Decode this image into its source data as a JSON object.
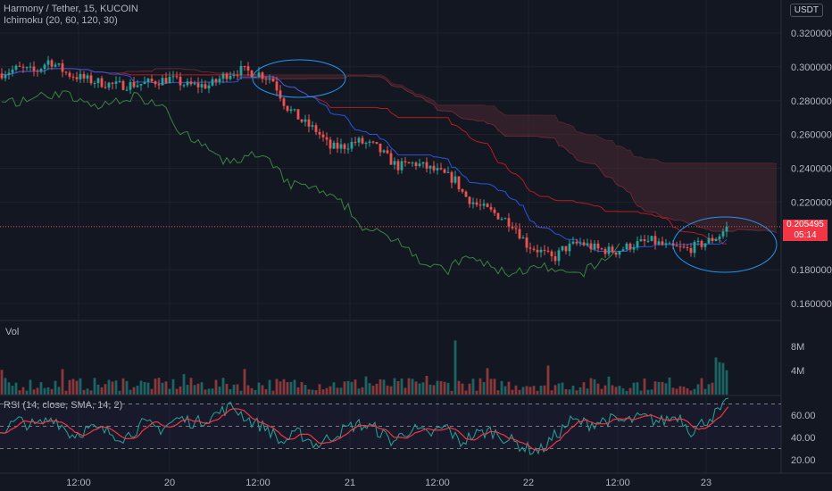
{
  "header": {
    "symbol_line": "Harmony / Tether, 15, KUCOIN",
    "indicator_line": "Ichimoku (20, 60, 120, 30)",
    "currency_button": "USDT"
  },
  "panes": {
    "volume_label": "Vol",
    "rsi_label": "RSI (14, close, SMA, 14, 2)"
  },
  "last_price": {
    "value": "0.205495",
    "countdown": "05:14"
  },
  "colors": {
    "background": "#131722",
    "up": "#26a69a",
    "down": "#ef5350",
    "conversion": "#2962ff",
    "base": "#b71c1c",
    "lagging": "#43a047",
    "cloud": "#6b2f36",
    "rsi": "#7e57c2",
    "rsi_ma": "#f23645",
    "annotation": "#2196f3"
  },
  "chart_data": [
    {
      "type": "candlestick",
      "title": "Harmony / Tether, 15, KUCOIN",
      "y_ticks": [
        "0.320000",
        "0.300000",
        "0.280000",
        "0.260000",
        "0.240000",
        "0.220000",
        "0.180000",
        "0.160000"
      ],
      "ylim": [
        0.152,
        0.326
      ],
      "x_ticks": [
        "12:00",
        "20",
        "12:00",
        "21",
        "12:00",
        "22",
        "12:00",
        "23"
      ],
      "price_anchors": [
        [
          0,
          0.296
        ],
        [
          20,
          0.299
        ],
        [
          40,
          0.297
        ],
        [
          55,
          0.304
        ],
        [
          75,
          0.296
        ],
        [
          100,
          0.292
        ],
        [
          130,
          0.289
        ],
        [
          160,
          0.29
        ],
        [
          190,
          0.293
        ],
        [
          210,
          0.289
        ],
        [
          235,
          0.289
        ],
        [
          255,
          0.296
        ],
        [
          270,
          0.298
        ],
        [
          290,
          0.296
        ],
        [
          305,
          0.293
        ],
        [
          320,
          0.277
        ],
        [
          340,
          0.267
        ],
        [
          355,
          0.262
        ],
        [
          370,
          0.252
        ],
        [
          385,
          0.253
        ],
        [
          400,
          0.256
        ],
        [
          420,
          0.253
        ],
        [
          445,
          0.241
        ],
        [
          465,
          0.243
        ],
        [
          490,
          0.238
        ],
        [
          510,
          0.233
        ],
        [
          520,
          0.224
        ],
        [
          535,
          0.218
        ],
        [
          555,
          0.213
        ],
        [
          575,
          0.207
        ],
        [
          590,
          0.195
        ],
        [
          605,
          0.191
        ],
        [
          620,
          0.186
        ],
        [
          630,
          0.192
        ],
        [
          650,
          0.196
        ],
        [
          670,
          0.192
        ],
        [
          690,
          0.191
        ],
        [
          710,
          0.195
        ],
        [
          730,
          0.197
        ],
        [
          750,
          0.193
        ],
        [
          770,
          0.192
        ],
        [
          790,
          0.196
        ],
        [
          805,
          0.2
        ],
        [
          816,
          0.2055
        ]
      ],
      "last_price": 0.205495,
      "annotations": [
        "ellipse near 0.294",
        "ellipse near 0.196"
      ]
    },
    {
      "type": "bar",
      "title": "Vol",
      "y_ticks": [
        "8M",
        "4M"
      ]
    },
    {
      "type": "line",
      "title": "RSI (14, close, SMA, 14, 2)",
      "y_ticks": [
        "60.00",
        "40.00",
        "20.00"
      ],
      "ylim": [
        0,
        100
      ],
      "bands": [
        70,
        50,
        30
      ],
      "rsi_anchors": [
        [
          0,
          45
        ],
        [
          20,
          55
        ],
        [
          40,
          50
        ],
        [
          60,
          58
        ],
        [
          80,
          42
        ],
        [
          100,
          48
        ],
        [
          120,
          45
        ],
        [
          140,
          40
        ],
        [
          160,
          52
        ],
        [
          180,
          48
        ],
        [
          200,
          57
        ],
        [
          220,
          53
        ],
        [
          240,
          60
        ],
        [
          260,
          68
        ],
        [
          280,
          55
        ],
        [
          300,
          48
        ],
        [
          315,
          35
        ],
        [
          335,
          44
        ],
        [
          355,
          33
        ],
        [
          380,
          45
        ],
        [
          400,
          52
        ],
        [
          420,
          48
        ],
        [
          440,
          36
        ],
        [
          460,
          48
        ],
        [
          480,
          42
        ],
        [
          500,
          50
        ],
        [
          515,
          35
        ],
        [
          530,
          42
        ],
        [
          550,
          46
        ],
        [
          570,
          38
        ],
        [
          590,
          30
        ],
        [
          605,
          28
        ],
        [
          620,
          40
        ],
        [
          640,
          55
        ],
        [
          660,
          52
        ],
        [
          680,
          56
        ],
        [
          700,
          54
        ],
        [
          720,
          58
        ],
        [
          740,
          54
        ],
        [
          760,
          60
        ],
        [
          775,
          45
        ],
        [
          790,
          55
        ],
        [
          805,
          63
        ],
        [
          816,
          71
        ]
      ]
    }
  ]
}
